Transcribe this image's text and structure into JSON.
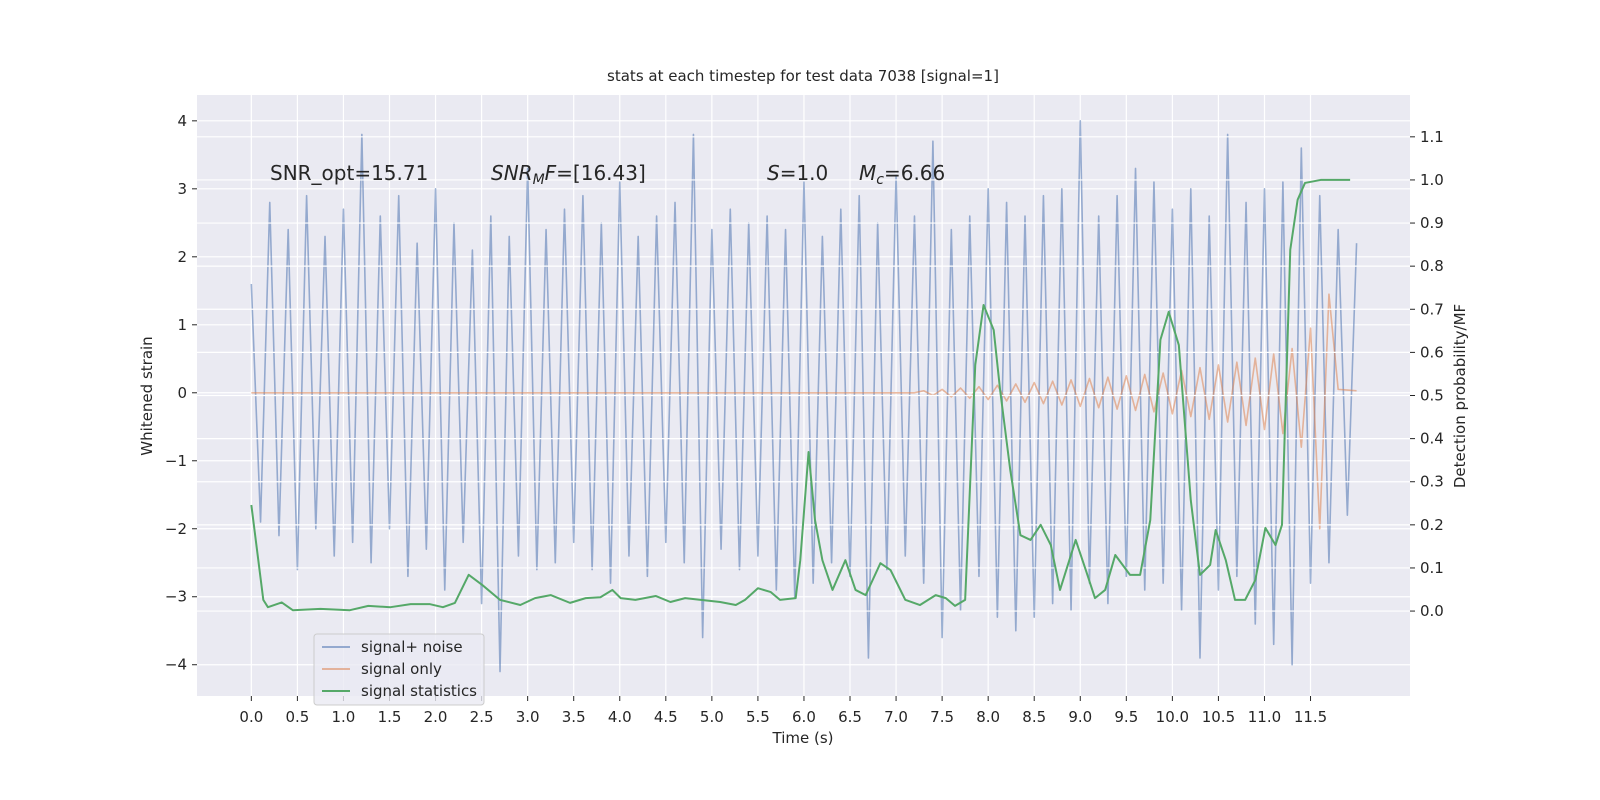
{
  "chart_data": {
    "type": "line",
    "title": "stats at each timestep for test data 7038 [signal=1]",
    "xlabel": "Time (s)",
    "ylabel": "Whitened strain",
    "y2label": "Detection probability/MF",
    "xlim": [
      -0.59,
      12.58
    ],
    "ylim": [
      -4.46,
      4.38
    ],
    "y2lim": [
      -0.197,
      1.197
    ],
    "xticks": [
      {
        "value": 0,
        "label": "0.0"
      },
      0.5,
      {
        "value": 1,
        "label": "1.0"
      },
      1.5,
      {
        "value": 2,
        "label": "2.0"
      },
      2.5,
      {
        "value": 3,
        "label": "3.0"
      },
      3.5,
      {
        "value": 4,
        "label": "4.0"
      },
      4.5,
      {
        "value": 5,
        "label": "5.0"
      },
      5.5,
      {
        "value": 6,
        "label": "6.0"
      },
      6.5,
      {
        "value": 7,
        "label": "7.0"
      },
      7.5,
      {
        "value": 8,
        "label": "8.0"
      },
      8.5,
      {
        "value": 9,
        "label": "9.0"
      },
      9.5,
      {
        "value": 10,
        "label": "10.0"
      },
      10.5,
      {
        "value": 11,
        "label": "11.0"
      },
      11.5
    ],
    "yticks": [
      {
        "value": -4,
        "label": "−4"
      },
      {
        "value": -3,
        "label": "−3"
      },
      {
        "value": -2,
        "label": "−2"
      },
      {
        "value": -1,
        "label": "−1"
      },
      0,
      1,
      2,
      3,
      4
    ],
    "y2ticks": [
      {
        "value": 0,
        "label": "0.0"
      },
      0.1,
      0.2,
      0.3,
      0.4,
      0.5,
      0.6,
      0.7,
      0.8,
      0.9,
      {
        "value": 1,
        "label": "1.0"
      },
      1.1
    ],
    "grid": true,
    "legend": "lower left",
    "x": [
      0,
      0.1,
      0.2,
      0.3,
      0.4,
      0.5,
      0.6,
      0.7,
      0.8,
      0.9,
      1,
      1.1,
      1.2,
      1.3,
      1.4,
      1.5,
      1.6,
      1.7,
      1.8,
      1.9,
      2,
      2.1,
      2.2,
      2.3,
      2.4,
      2.5,
      2.6,
      2.7,
      2.8,
      2.9,
      3,
      3.1,
      3.2,
      3.3,
      3.4,
      3.5,
      3.6,
      3.7,
      3.8,
      3.9,
      4,
      4.1,
      4.2,
      4.3,
      4.4,
      4.5,
      4.6,
      4.7,
      4.8,
      4.9,
      5,
      5.1,
      5.2,
      5.3,
      5.4,
      5.5,
      5.6,
      5.7,
      5.8,
      5.9,
      6,
      6.1,
      6.2,
      6.3,
      6.4,
      6.5,
      6.6,
      6.7,
      6.8,
      6.9,
      7,
      7.1,
      7.2,
      7.3,
      7.4,
      7.5,
      7.6,
      7.7,
      7.8,
      7.9,
      8,
      8.1,
      8.2,
      8.3,
      8.4,
      8.5,
      8.6,
      8.7,
      8.8,
      8.9,
      9,
      9.1,
      9.2,
      9.3,
      9.4,
      9.5,
      9.6,
      9.7,
      9.8,
      9.9,
      10,
      10.1,
      10.2,
      10.3,
      10.4,
      10.5,
      10.6,
      10.7,
      10.8,
      10.9,
      11,
      11.1,
      11.2,
      11.3,
      11.4,
      11.5,
      11.6,
      11.7,
      11.8,
      11.9,
      12
    ],
    "series": [
      {
        "name": "signal+ noise",
        "color": "#4c72b0",
        "values": [
          1.6,
          -1.9,
          2.8,
          -2.1,
          2.4,
          -2.6,
          2.9,
          -2.0,
          2.3,
          -2.4,
          2.7,
          -2.2,
          3.8,
          -2.5,
          2.6,
          -2.0,
          2.9,
          -2.7,
          2.2,
          -2.3,
          3.0,
          -2.9,
          2.5,
          -2.2,
          2.1,
          -3.1,
          2.6,
          -4.1,
          2.3,
          -2.4,
          3.3,
          -2.6,
          2.4,
          -2.5,
          2.7,
          -2.2,
          2.9,
          -2.6,
          2.5,
          -2.8,
          3.1,
          -2.4,
          2.3,
          -2.7,
          2.6,
          -2.2,
          2.8,
          -2.5,
          3.8,
          -3.6,
          2.4,
          -2.3,
          2.7,
          -2.6,
          2.5,
          -2.4,
          2.6,
          -2.9,
          2.4,
          -3.0,
          3.1,
          -2.8,
          2.3,
          -2.5,
          2.7,
          -2.7,
          2.9,
          -3.9,
          2.5,
          -2.6,
          3.2,
          -2.4,
          2.6,
          -2.8,
          3.7,
          -3.6,
          2.4,
          -3.2,
          2.6,
          -2.7,
          3.0,
          -3.3,
          2.8,
          -3.5,
          2.6,
          -3.3,
          2.9,
          -3.1,
          3.0,
          -3.2,
          4.0,
          -2.8,
          2.6,
          -3.1,
          2.9,
          -2.7,
          3.3,
          -2.9,
          3.1,
          -2.8,
          2.7,
          -3.2,
          3.0,
          -3.9,
          2.6,
          -2.9,
          3.8,
          -2.7,
          2.8,
          -3.4,
          3.0,
          -3.7,
          3.1,
          -4.0,
          3.6,
          -2.8,
          2.9,
          -2.5,
          2.4,
          -1.8,
          2.2
        ]
      },
      {
        "name": "signal only",
        "color": "#dd8452",
        "values": [
          0,
          0,
          0,
          0,
          0,
          0,
          0,
          0,
          0,
          0,
          0,
          0,
          0,
          0,
          0,
          0,
          0,
          0,
          0,
          0,
          0,
          0,
          0,
          0,
          0,
          0,
          0,
          0,
          0,
          0,
          0,
          0,
          0,
          0,
          0,
          0,
          0,
          0,
          0,
          0,
          0,
          0,
          0,
          0,
          0,
          0,
          0,
          0,
          0,
          0,
          0,
          0,
          0,
          0,
          0,
          0,
          0,
          0,
          0,
          0,
          0,
          0,
          0,
          0,
          0,
          0,
          0,
          0,
          0,
          0,
          0,
          0,
          0,
          0.03,
          -0.04,
          0.05,
          -0.06,
          0.07,
          -0.08,
          0.09,
          -0.1,
          0.11,
          -0.12,
          0.13,
          -0.14,
          0.15,
          -0.16,
          0.17,
          -0.18,
          0.19,
          -0.2,
          0.21,
          -0.22,
          0.23,
          -0.24,
          0.25,
          -0.26,
          0.27,
          -0.28,
          0.29,
          -0.31,
          0.33,
          -0.35,
          0.37,
          -0.39,
          0.41,
          -0.43,
          0.45,
          -0.48,
          0.51,
          -0.54,
          0.57,
          -0.6,
          0.65,
          -0.8,
          0.95,
          -2.0,
          1.45,
          0.05,
          0.04,
          0.03
        ]
      },
      {
        "name": "signal statistics",
        "color": "#55a868",
        "axis": "y2",
        "x": [
          0,
          0.13,
          0.18,
          0.33,
          0.45,
          0.75,
          1.07,
          1.27,
          1.51,
          1.73,
          1.94,
          2.08,
          2.21,
          2.36,
          2.51,
          2.7,
          2.92,
          3.08,
          3.25,
          3.46,
          3.63,
          3.79,
          3.92,
          4.01,
          4.17,
          4.39,
          4.55,
          4.71,
          4.88,
          5.09,
          5.26,
          5.36,
          5.5,
          5.64,
          5.74,
          5.91,
          5.96,
          6.05,
          6.12,
          6.2,
          6.31,
          6.45,
          6.56,
          6.67,
          6.83,
          6.94,
          7.1,
          7.26,
          7.43,
          7.54,
          7.64,
          7.75,
          7.86,
          7.95,
          8.06,
          8.13,
          8.24,
          8.35,
          8.46,
          8.57,
          8.68,
          8.78,
          8.95,
          9.06,
          9.16,
          9.27,
          9.38,
          9.54,
          9.65,
          9.76,
          9.87,
          9.96,
          10.07,
          10.2,
          10.3,
          10.41,
          10.47,
          10.58,
          10.68,
          10.79,
          10.9,
          11.01,
          11.12,
          11.19,
          11.28,
          11.36,
          11.44,
          11.61,
          11.93
        ],
        "values": [
          0.246,
          0.026,
          0.009,
          0.02,
          0.002,
          0.005,
          0.002,
          0.012,
          0.009,
          0.016,
          0.016,
          0.009,
          0.019,
          0.084,
          0.06,
          0.026,
          0.014,
          0.03,
          0.037,
          0.019,
          0.03,
          0.032,
          0.049,
          0.03,
          0.026,
          0.035,
          0.021,
          0.03,
          0.026,
          0.021,
          0.014,
          0.026,
          0.053,
          0.044,
          0.026,
          0.03,
          0.118,
          0.369,
          0.211,
          0.118,
          0.049,
          0.118,
          0.049,
          0.037,
          0.111,
          0.095,
          0.026,
          0.014,
          0.037,
          0.03,
          0.012,
          0.026,
          0.571,
          0.71,
          0.652,
          0.512,
          0.327,
          0.176,
          0.165,
          0.2,
          0.153,
          0.049,
          0.165,
          0.095,
          0.03,
          0.049,
          0.13,
          0.084,
          0.084,
          0.211,
          0.629,
          0.694,
          0.617,
          0.257,
          0.084,
          0.107,
          0.188,
          0.118,
          0.026,
          0.026,
          0.072,
          0.193,
          0.153,
          0.2,
          0.838,
          0.954,
          0.993,
          1.0,
          1.0
        ]
      }
    ],
    "annotations": [
      {
        "parts": [
          {
            "text": "SNR_opt=15.71"
          }
        ]
      },
      {
        "parts": [
          {
            "text": "SNR",
            "italic": true
          },
          {
            "text": "M",
            "italic": true,
            "sub": true
          },
          {
            "text": "F",
            "italic": true
          },
          {
            "text": "=[16.43]"
          }
        ]
      },
      {
        "parts": [
          {
            "text": "S",
            "italic": true
          },
          {
            "text": "=1.0"
          }
        ]
      },
      {
        "parts": [
          {
            "text": "M",
            "italic": true
          },
          {
            "text": "c",
            "italic": true,
            "sub": true
          },
          {
            "text": "=6.66"
          }
        ]
      }
    ]
  }
}
